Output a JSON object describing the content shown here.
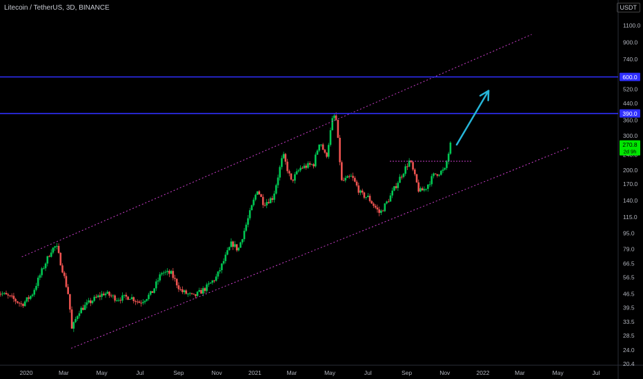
{
  "header": {
    "symbol_title": "Litecoin / TetherUS, 3D, BINANCE",
    "currency": "USDT"
  },
  "colors": {
    "up": "#26a69a",
    "up_bright": "#00c853",
    "down": "#ef5350",
    "channel": "#d040d0",
    "level": "#2f2fff",
    "arrow": "#26b5d8",
    "price_badge": "#00e600"
  },
  "chart_data": {
    "type": "candlestick",
    "scale": "log",
    "ylim": [
      20.4,
      1300
    ],
    "y_ticks": [
      "1100.0",
      "900.0",
      "740.0",
      "600.0",
      "520.0",
      "440.0",
      "390.0",
      "360.0",
      "300.0",
      "240.0",
      "200.0",
      "170.0",
      "140.0",
      "115.0",
      "95.0",
      "79.0",
      "66.5",
      "56.5",
      "46.5",
      "39.5",
      "33.5",
      "28.5",
      "24.0",
      "20.4"
    ],
    "x_ticks": [
      "2020",
      "Mar",
      "May",
      "Jul",
      "Sep",
      "Nov",
      "2021",
      "Mar",
      "May",
      "Jul",
      "Sep",
      "Nov",
      "2022",
      "Mar",
      "May",
      "Jul"
    ],
    "horizontal_levels": [
      {
        "label": "600.0",
        "value": 600
      },
      {
        "label": "390.0",
        "value": 390
      }
    ],
    "last_price": {
      "value": "270.8",
      "sub": "2d 9h"
    },
    "anchors": [
      {
        "date": "2019-11-15",
        "price": 48
      },
      {
        "date": "2019-12-10",
        "price": 44
      },
      {
        "date": "2019-12-25",
        "price": 41
      },
      {
        "date": "2020-01-10",
        "price": 46
      },
      {
        "date": "2020-01-25",
        "price": 60
      },
      {
        "date": "2020-02-10",
        "price": 78
      },
      {
        "date": "2020-02-18",
        "price": 82
      },
      {
        "date": "2020-02-28",
        "price": 62
      },
      {
        "date": "2020-03-10",
        "price": 44
      },
      {
        "date": "2020-03-13",
        "price": 30
      },
      {
        "date": "2020-03-25",
        "price": 38
      },
      {
        "date": "2020-04-15",
        "price": 43
      },
      {
        "date": "2020-05-05",
        "price": 47
      },
      {
        "date": "2020-05-25",
        "price": 44
      },
      {
        "date": "2020-06-15",
        "price": 45
      },
      {
        "date": "2020-07-01",
        "price": 42
      },
      {
        "date": "2020-07-20",
        "price": 47
      },
      {
        "date": "2020-08-05",
        "price": 60
      },
      {
        "date": "2020-08-20",
        "price": 59
      },
      {
        "date": "2020-09-05",
        "price": 48
      },
      {
        "date": "2020-09-25",
        "price": 45
      },
      {
        "date": "2020-10-15",
        "price": 50
      },
      {
        "date": "2020-11-01",
        "price": 57
      },
      {
        "date": "2020-11-15",
        "price": 72
      },
      {
        "date": "2020-11-25",
        "price": 85
      },
      {
        "date": "2020-12-05",
        "price": 78
      },
      {
        "date": "2020-12-20",
        "price": 110
      },
      {
        "date": "2021-01-05",
        "price": 160
      },
      {
        "date": "2021-01-15",
        "price": 135
      },
      {
        "date": "2021-01-30",
        "price": 145
      },
      {
        "date": "2021-02-15",
        "price": 240
      },
      {
        "date": "2021-02-28",
        "price": 175
      },
      {
        "date": "2021-03-15",
        "price": 205
      },
      {
        "date": "2021-04-05",
        "price": 215
      },
      {
        "date": "2021-04-15",
        "price": 285
      },
      {
        "date": "2021-04-25",
        "price": 230
      },
      {
        "date": "2021-05-05",
        "price": 360
      },
      {
        "date": "2021-05-10",
        "price": 390
      },
      {
        "date": "2021-05-20",
        "price": 175
      },
      {
        "date": "2021-06-05",
        "price": 185
      },
      {
        "date": "2021-06-20",
        "price": 150
      },
      {
        "date": "2021-07-01",
        "price": 145
      },
      {
        "date": "2021-07-20",
        "price": 120
      },
      {
        "date": "2021-08-05",
        "price": 145
      },
      {
        "date": "2021-08-20",
        "price": 180
      },
      {
        "date": "2021-09-06",
        "price": 225
      },
      {
        "date": "2021-09-21",
        "price": 155
      },
      {
        "date": "2021-09-30",
        "price": 160
      },
      {
        "date": "2021-10-15",
        "price": 190
      },
      {
        "date": "2021-11-01",
        "price": 200
      },
      {
        "date": "2021-11-10",
        "price": 270
      }
    ],
    "channel_upper": {
      "start": {
        "date": "2019-12-25",
        "price": 72
      },
      "end": {
        "date": "2022-03-20",
        "price": 990
      }
    },
    "channel_lower": {
      "start": {
        "date": "2020-03-13",
        "price": 24.5
      },
      "end": {
        "date": "2022-05-20",
        "price": 262
      }
    },
    "breakout_line": {
      "start": {
        "date": "2021-08-05",
        "price": 222
      },
      "end": {
        "date": "2021-12-15",
        "price": 222
      }
    },
    "arrow": {
      "start": {
        "date": "2021-11-20",
        "price": 270
      },
      "end": {
        "date": "2022-01-10",
        "price": 510
      }
    }
  }
}
